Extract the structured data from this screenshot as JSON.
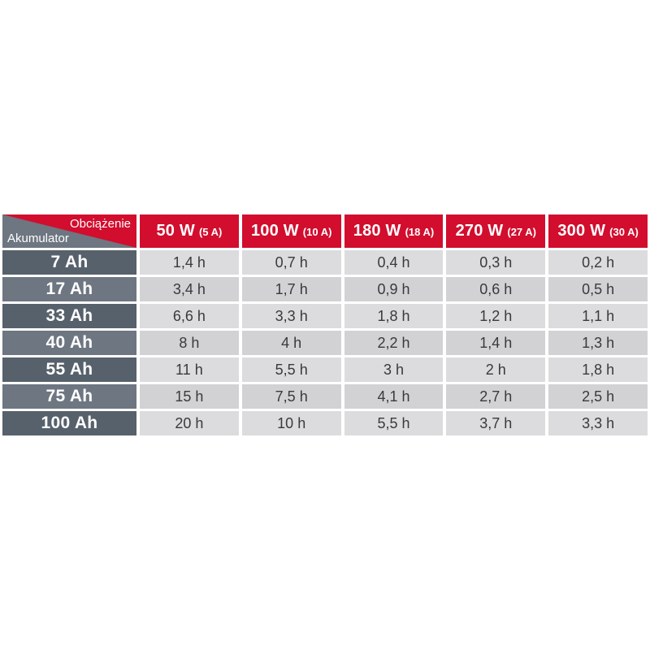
{
  "page": {
    "background": "#ffffff"
  },
  "table": {
    "corner": {
      "load_label": "Obciążenie",
      "battery_label": "Akumulator"
    },
    "columns": [
      {
        "power": "50 W",
        "current": "(5 A)"
      },
      {
        "power": "100 W",
        "current": "(10 A)"
      },
      {
        "power": "180 W",
        "current": "(18 A)"
      },
      {
        "power": "270 W",
        "current": "(27 A)"
      },
      {
        "power": "300 W",
        "current": "(30 A)"
      }
    ],
    "rows": [
      {
        "capacity": "7 Ah",
        "values": [
          "1,4 h",
          "0,7 h",
          "0,4 h",
          "0,3 h",
          "0,2 h"
        ]
      },
      {
        "capacity": "17 Ah",
        "values": [
          "3,4 h",
          "1,7 h",
          "0,9 h",
          "0,6 h",
          "0,5 h"
        ]
      },
      {
        "capacity": "33 Ah",
        "values": [
          "6,6 h",
          "3,3 h",
          "1,8 h",
          "1,2 h",
          "1,1 h"
        ]
      },
      {
        "capacity": "40 Ah",
        "values": [
          "8 h",
          "4 h",
          "2,2 h",
          "1,4 h",
          "1,3 h"
        ]
      },
      {
        "capacity": "55 Ah",
        "values": [
          "11 h",
          "5,5 h",
          "3 h",
          "2 h",
          "1,8 h"
        ]
      },
      {
        "capacity": "75 Ah",
        "values": [
          "15 h",
          "7,5 h",
          "4,1 h",
          "2,7 h",
          "2,5 h"
        ]
      },
      {
        "capacity": "100 Ah",
        "values": [
          "20 h",
          "10 h",
          "5,5 h",
          "3,7 h",
          "3,3 h"
        ]
      }
    ],
    "colors": {
      "accent_red": "#d20d2e",
      "label_row_dark": "#57616b",
      "label_row_light": "#6d7681",
      "value_cell_light": "#dcdcde",
      "value_cell_dark": "#d2d2d5",
      "value_text": "#3a3a3c"
    }
  },
  "chart_data": {
    "type": "table",
    "title": "",
    "corner_top_right_label": "Obciążenie",
    "corner_bottom_left_label": "Akumulator",
    "columns": [
      "50 W (5 A)",
      "100 W (10 A)",
      "180 W (18 A)",
      "270 W (27 A)",
      "300 W (30 A)"
    ],
    "rows": [
      "7 Ah",
      "17 Ah",
      "33 Ah",
      "40 Ah",
      "55 Ah",
      "75 Ah",
      "100 Ah"
    ],
    "values_hours": [
      [
        1.4,
        0.7,
        0.4,
        0.3,
        0.2
      ],
      [
        3.4,
        1.7,
        0.9,
        0.6,
        0.5
      ],
      [
        6.6,
        3.3,
        1.8,
        1.2,
        1.1
      ],
      [
        8,
        4,
        2.2,
        1.4,
        1.3
      ],
      [
        11,
        5.5,
        3,
        2,
        1.8
      ],
      [
        15,
        7.5,
        4.1,
        2.7,
        2.5
      ],
      [
        20,
        10,
        5.5,
        3.7,
        3.3
      ]
    ]
  }
}
